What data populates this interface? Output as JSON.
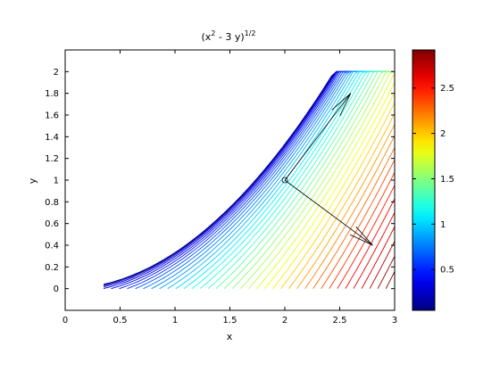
{
  "chart_data": {
    "type": "contour",
    "title": {
      "base": "(x",
      "exp1": "2",
      "mid": " - 3 y)",
      "exp2": "1/2"
    },
    "expression": "sqrt(x^2 - 3y)",
    "xlabel": "x",
    "ylabel": "y",
    "xlim": [
      0,
      3
    ],
    "ylim": [
      -0.2,
      2.2
    ],
    "x_ticks": [
      "0",
      "0.5",
      "1",
      "1.5",
      "2",
      "2.5",
      "3"
    ],
    "y_ticks": [
      "0",
      "0.2",
      "0.4",
      "0.6",
      "0.8",
      "1",
      "1.2",
      "1.4",
      "1.6",
      "1.8",
      "2"
    ],
    "domain": {
      "x": [
        0.35,
        3
      ],
      "y": [
        0,
        2
      ]
    },
    "contour_levels": 40,
    "colormap": "jet",
    "colorbar": {
      "range": [
        0.05,
        2.92
      ],
      "ticks": [
        "0.5",
        "1",
        "1.5",
        "2",
        "2.5"
      ]
    },
    "point": {
      "x": 2,
      "y": 1,
      "marker": "circle"
    },
    "arrows": [
      {
        "from": [
          2,
          1
        ],
        "to": [
          2.6,
          1.8
        ]
      },
      {
        "from": [
          2,
          1
        ],
        "to": [
          2.8,
          0.4
        ]
      }
    ],
    "grid": false
  }
}
